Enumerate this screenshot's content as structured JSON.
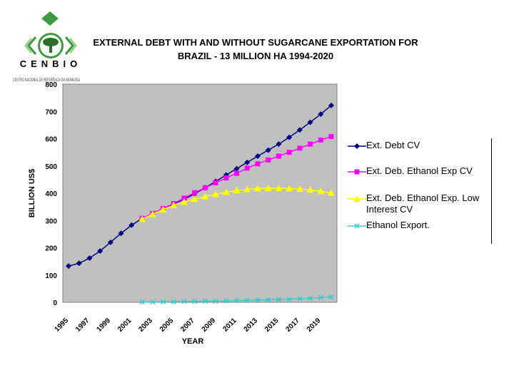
{
  "logo": {
    "name": "CENBIO",
    "subtitle": "CENTRO NACIONAL DE REFERÊNCIA EM BIOMASSA",
    "colors": {
      "green": "#3e9a3e",
      "dark": "#2c6e2c",
      "light": "#9ccf8c"
    }
  },
  "chart_data": {
    "type": "line",
    "title": "EXTERNAL DEBT WITH AND WITHOUT SUGARCANE EXPORTATION FOR BRAZIL - 13 MILLION HA 1994-2020",
    "title_lines": [
      "EXTERNAL DEBT WITH AND WITHOUT SUGARCANE EXPORTATION FOR",
      "BRAZIL - 13 MILLION HA 1994-2020"
    ],
    "xlabel": "YEAR",
    "ylabel": "BILLION US$",
    "xlim": [
      1995,
      2020
    ],
    "ylim": [
      0,
      800
    ],
    "yticks": [
      0,
      100,
      200,
      300,
      400,
      500,
      600,
      700,
      800
    ],
    "xticks": [
      1995,
      1997,
      1999,
      2001,
      2003,
      2005,
      2007,
      2009,
      2011,
      2013,
      2015,
      2017,
      2019
    ],
    "grid": false,
    "plot_background": "#c0c0c0",
    "legend_position": "right",
    "series": [
      {
        "name": "Ext. Debt CV",
        "color": "#000080",
        "marker": "diamond",
        "x": [
          1995,
          1996,
          1997,
          1998,
          1999,
          2000,
          2001,
          2002,
          2003,
          2004,
          2005,
          2006,
          2007,
          2008,
          2009,
          2010,
          2011,
          2012,
          2013,
          2014,
          2015,
          2016,
          2017,
          2018,
          2019,
          2020
        ],
        "values": [
          133,
          143,
          162,
          188,
          220,
          253,
          283,
          307,
          323,
          342,
          360,
          378,
          398,
          420,
          443,
          467,
          490,
          513,
          536,
          558,
          580,
          605,
          632,
          660,
          690,
          722
        ]
      },
      {
        "name": "Ext. Deb. Ethanol Exp CV",
        "color": "#ff00ff",
        "marker": "square",
        "x": [
          2002,
          2003,
          2004,
          2005,
          2006,
          2007,
          2008,
          2009,
          2010,
          2011,
          2012,
          2013,
          2014,
          2015,
          2016,
          2017,
          2018,
          2019,
          2020
        ],
        "values": [
          308,
          326,
          344,
          362,
          382,
          402,
          420,
          438,
          456,
          473,
          492,
          508,
          522,
          536,
          550,
          565,
          580,
          595,
          608
        ]
      },
      {
        "name": "Ext. Deb. Ethanol Exp. Low Interest CV",
        "color": "#ffff00",
        "marker": "triangle",
        "x": [
          2002,
          2003,
          2004,
          2005,
          2006,
          2007,
          2008,
          2009,
          2010,
          2011,
          2012,
          2013,
          2014,
          2015,
          2016,
          2017,
          2018,
          2019,
          2020
        ],
        "values": [
          305,
          323,
          340,
          356,
          368,
          378,
          388,
          396,
          404,
          410,
          414,
          417,
          418,
          418,
          417,
          415,
          412,
          407,
          401
        ]
      },
      {
        "name": "Ethanol Export.",
        "color": "#33cccc",
        "marker": "x",
        "x": [
          2002,
          2003,
          2004,
          2005,
          2006,
          2007,
          2008,
          2009,
          2010,
          2011,
          2012,
          2013,
          2014,
          2015,
          2016,
          2017,
          2018,
          2019,
          2020
        ],
        "values": [
          1,
          1,
          2,
          2,
          3,
          3,
          4,
          4,
          5,
          6,
          7,
          8,
          9,
          10,
          11,
          13,
          15,
          17,
          19
        ]
      }
    ]
  }
}
